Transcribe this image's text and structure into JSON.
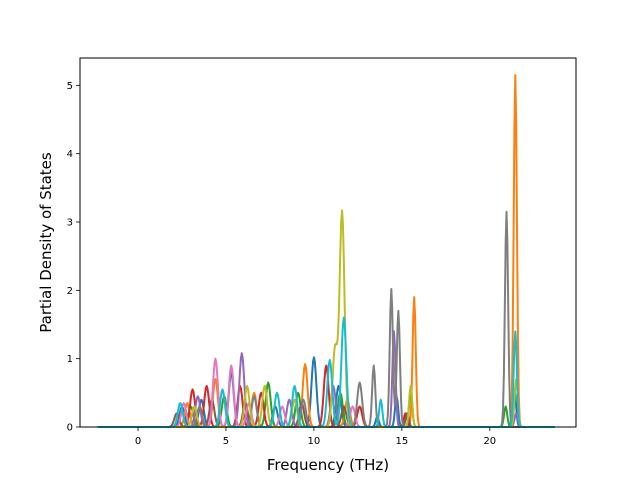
{
  "chart_data": {
    "type": "line",
    "title": "",
    "xlabel": "Frequency (THz)",
    "ylabel": "Partial Density of States",
    "xlim": [
      -3.3,
      24.9
    ],
    "ylim": [
      0,
      5.4
    ],
    "xticks": [
      0,
      5,
      10,
      15,
      20
    ],
    "yticks": [
      0,
      1,
      2,
      3,
      4,
      5
    ],
    "grid": false,
    "legend": "none",
    "x_range_plotted": [
      -2.3,
      23.7
    ],
    "series_colors": [
      "#1f77b4",
      "#ff7f0e",
      "#2ca02c",
      "#d62728",
      "#9467bd",
      "#8c564b",
      "#e377c2",
      "#7f7f7f",
      "#bcbd22",
      "#17becf"
    ],
    "series": [
      {
        "color": "#1f77b4",
        "peaks": [
          [
            2.5,
            0.3
          ],
          [
            3.6,
            0.4
          ],
          [
            5.3,
            0.8
          ],
          [
            7.8,
            0.3
          ],
          [
            10.0,
            1.02
          ],
          [
            11.4,
            0.6
          ],
          [
            13.6,
            0.15
          ],
          [
            14.7,
            0.45
          ],
          [
            21.4,
            0.55
          ]
        ]
      },
      {
        "color": "#ff7f0e",
        "peaks": [
          [
            2.8,
            0.35
          ],
          [
            4.4,
            0.7
          ],
          [
            6.6,
            0.5
          ],
          [
            9.5,
            0.92
          ],
          [
            11.9,
            0.4
          ],
          [
            15.7,
            1.9
          ],
          [
            21.45,
            5.15
          ]
        ]
      },
      {
        "color": "#2ca02c",
        "peaks": [
          [
            3.0,
            0.3
          ],
          [
            4.9,
            0.45
          ],
          [
            7.4,
            0.65
          ],
          [
            9.1,
            0.5
          ],
          [
            11.5,
            0.5
          ],
          [
            15.5,
            0.55
          ],
          [
            20.9,
            0.3
          ]
        ]
      },
      {
        "color": "#d62728",
        "peaks": [
          [
            3.1,
            0.55
          ],
          [
            3.9,
            0.6
          ],
          [
            5.8,
            0.6
          ],
          [
            7.0,
            0.5
          ],
          [
            10.7,
            0.9
          ],
          [
            12.6,
            0.3
          ],
          [
            15.2,
            0.2
          ]
        ]
      },
      {
        "color": "#9467bd",
        "peaks": [
          [
            3.4,
            0.45
          ],
          [
            5.9,
            1.08
          ],
          [
            8.6,
            0.4
          ],
          [
            11.1,
            0.6
          ],
          [
            14.55,
            1.4
          ],
          [
            21.5,
            0.2
          ]
        ]
      },
      {
        "color": "#8c564b",
        "peaks": [
          [
            2.2,
            0.2
          ],
          [
            4.2,
            0.4
          ],
          [
            6.1,
            0.35
          ],
          [
            9.3,
            0.35
          ],
          [
            11.7,
            0.3
          ],
          [
            15.3,
            0.2
          ]
        ]
      },
      {
        "color": "#e377c2",
        "peaks": [
          [
            2.6,
            0.35
          ],
          [
            4.4,
            1.0
          ],
          [
            5.3,
            0.9
          ],
          [
            6.3,
            0.35
          ],
          [
            8.2,
            0.3
          ],
          [
            12.2,
            0.3
          ]
        ]
      },
      {
        "color": "#7f7f7f",
        "peaks": [
          [
            3.5,
            0.3
          ],
          [
            6.6,
            0.45
          ],
          [
            9.4,
            0.4
          ],
          [
            12.6,
            0.65
          ],
          [
            13.4,
            0.9
          ],
          [
            14.4,
            2.02
          ],
          [
            14.8,
            1.7
          ],
          [
            20.95,
            3.15
          ]
        ]
      },
      {
        "color": "#bcbd22",
        "peaks": [
          [
            3.2,
            0.3
          ],
          [
            6.2,
            0.6
          ],
          [
            7.2,
            0.6
          ],
          [
            8.9,
            0.4
          ],
          [
            11.2,
            1.15
          ],
          [
            11.6,
            3.15
          ],
          [
            15.5,
            0.6
          ],
          [
            21.5,
            0.7
          ]
        ]
      },
      {
        "color": "#17becf",
        "peaks": [
          [
            2.4,
            0.35
          ],
          [
            4.8,
            0.55
          ],
          [
            7.9,
            0.5
          ],
          [
            8.9,
            0.6
          ],
          [
            10.9,
            0.98
          ],
          [
            11.7,
            1.6
          ],
          [
            13.8,
            0.4
          ],
          [
            21.45,
            1.4
          ]
        ]
      }
    ]
  }
}
